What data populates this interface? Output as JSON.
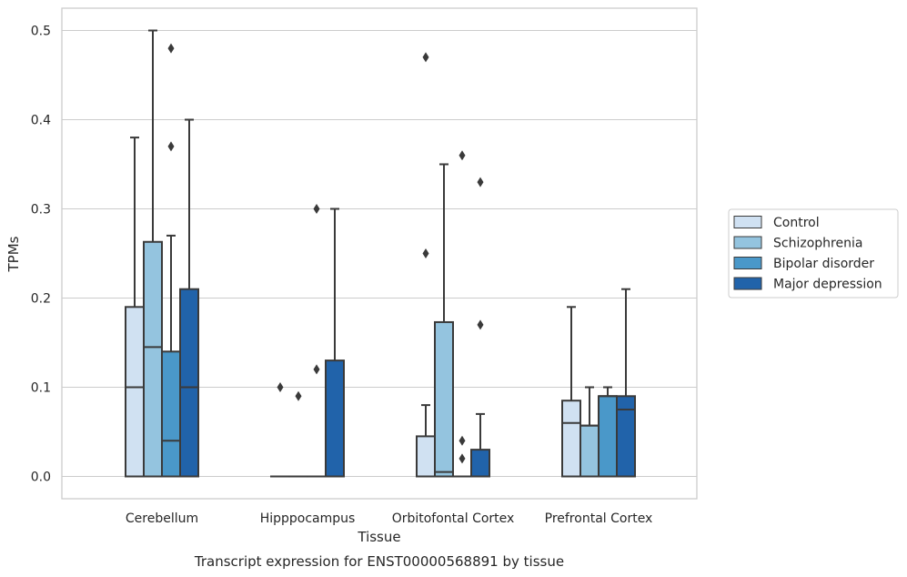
{
  "chart_data": {
    "type": "box",
    "title": "",
    "caption": "Transcript expression for ENST00000568891 by tissue",
    "xlabel": "Tissue",
    "ylabel": "TPMs",
    "ylim": [
      -0.025,
      0.525
    ],
    "yticks": [
      0.0,
      0.1,
      0.2,
      0.3,
      0.4,
      0.5
    ],
    "ytick_labels": [
      "0.0",
      "0.1",
      "0.2",
      "0.3",
      "0.4",
      "0.5"
    ],
    "grid": "horizontal",
    "legend_position": "right",
    "categories": [
      "Cerebellum",
      "Hipppocampus",
      "Orbitofontal Cortex",
      "Prefrontal Cortex"
    ],
    "series": [
      {
        "name": "Control",
        "color": "#d0e1f2",
        "boxes": [
          {
            "q1": 0.0,
            "median": 0.1,
            "q3": 0.19,
            "whisker_low": 0.0,
            "whisker_high": 0.38,
            "outliers": []
          },
          {
            "q1": 0.0,
            "median": 0.0,
            "q3": 0.0,
            "whisker_low": 0.0,
            "whisker_high": 0.0,
            "outliers": [
              0.1
            ]
          },
          {
            "q1": 0.0,
            "median": 0.0,
            "q3": 0.045,
            "whisker_low": 0.0,
            "whisker_high": 0.08,
            "outliers": [
              0.25,
              0.47
            ]
          },
          {
            "q1": 0.0,
            "median": 0.06,
            "q3": 0.085,
            "whisker_low": 0.0,
            "whisker_high": 0.19,
            "outliers": []
          }
        ]
      },
      {
        "name": "Schizophrenia",
        "color": "#94c4df",
        "boxes": [
          {
            "q1": 0.0,
            "median": 0.145,
            "q3": 0.263,
            "whisker_low": 0.0,
            "whisker_high": 0.5,
            "outliers": []
          },
          {
            "q1": 0.0,
            "median": 0.0,
            "q3": 0.0,
            "whisker_low": 0.0,
            "whisker_high": 0.0,
            "outliers": [
              0.09
            ]
          },
          {
            "q1": 0.0,
            "median": 0.005,
            "q3": 0.173,
            "whisker_low": 0.0,
            "whisker_high": 0.35,
            "outliers": []
          },
          {
            "q1": 0.0,
            "median": 0.057,
            "q3": 0.057,
            "whisker_low": 0.0,
            "whisker_high": 0.1,
            "outliers": []
          }
        ]
      },
      {
        "name": "Bipolar disorder",
        "color": "#4a98c9",
        "boxes": [
          {
            "q1": 0.0,
            "median": 0.04,
            "q3": 0.14,
            "whisker_low": 0.0,
            "whisker_high": 0.27,
            "outliers": [
              0.37,
              0.48
            ]
          },
          {
            "q1": 0.0,
            "median": 0.0,
            "q3": 0.0,
            "whisker_low": 0.0,
            "whisker_high": 0.0,
            "outliers": [
              0.12,
              0.3
            ]
          },
          {
            "q1": 0.0,
            "median": 0.0,
            "q3": 0.0,
            "whisker_low": 0.0,
            "whisker_high": 0.0,
            "outliers": [
              0.02,
              0.04,
              0.36
            ]
          },
          {
            "q1": 0.0,
            "median": 0.09,
            "q3": 0.09,
            "whisker_low": 0.0,
            "whisker_high": 0.1,
            "outliers": []
          }
        ]
      },
      {
        "name": "Major depression",
        "color": "#2163aa",
        "boxes": [
          {
            "q1": 0.0,
            "median": 0.1,
            "q3": 0.21,
            "whisker_low": 0.0,
            "whisker_high": 0.4,
            "outliers": []
          },
          {
            "q1": 0.0,
            "median": 0.0,
            "q3": 0.13,
            "whisker_low": 0.0,
            "whisker_high": 0.3,
            "outliers": []
          },
          {
            "q1": 0.0,
            "median": 0.0,
            "q3": 0.03,
            "whisker_low": 0.0,
            "whisker_high": 0.07,
            "outliers": [
              0.17,
              0.33
            ]
          },
          {
            "q1": 0.0,
            "median": 0.075,
            "q3": 0.09,
            "whisker_low": 0.0,
            "whisker_high": 0.21,
            "outliers": []
          }
        ]
      }
    ]
  }
}
